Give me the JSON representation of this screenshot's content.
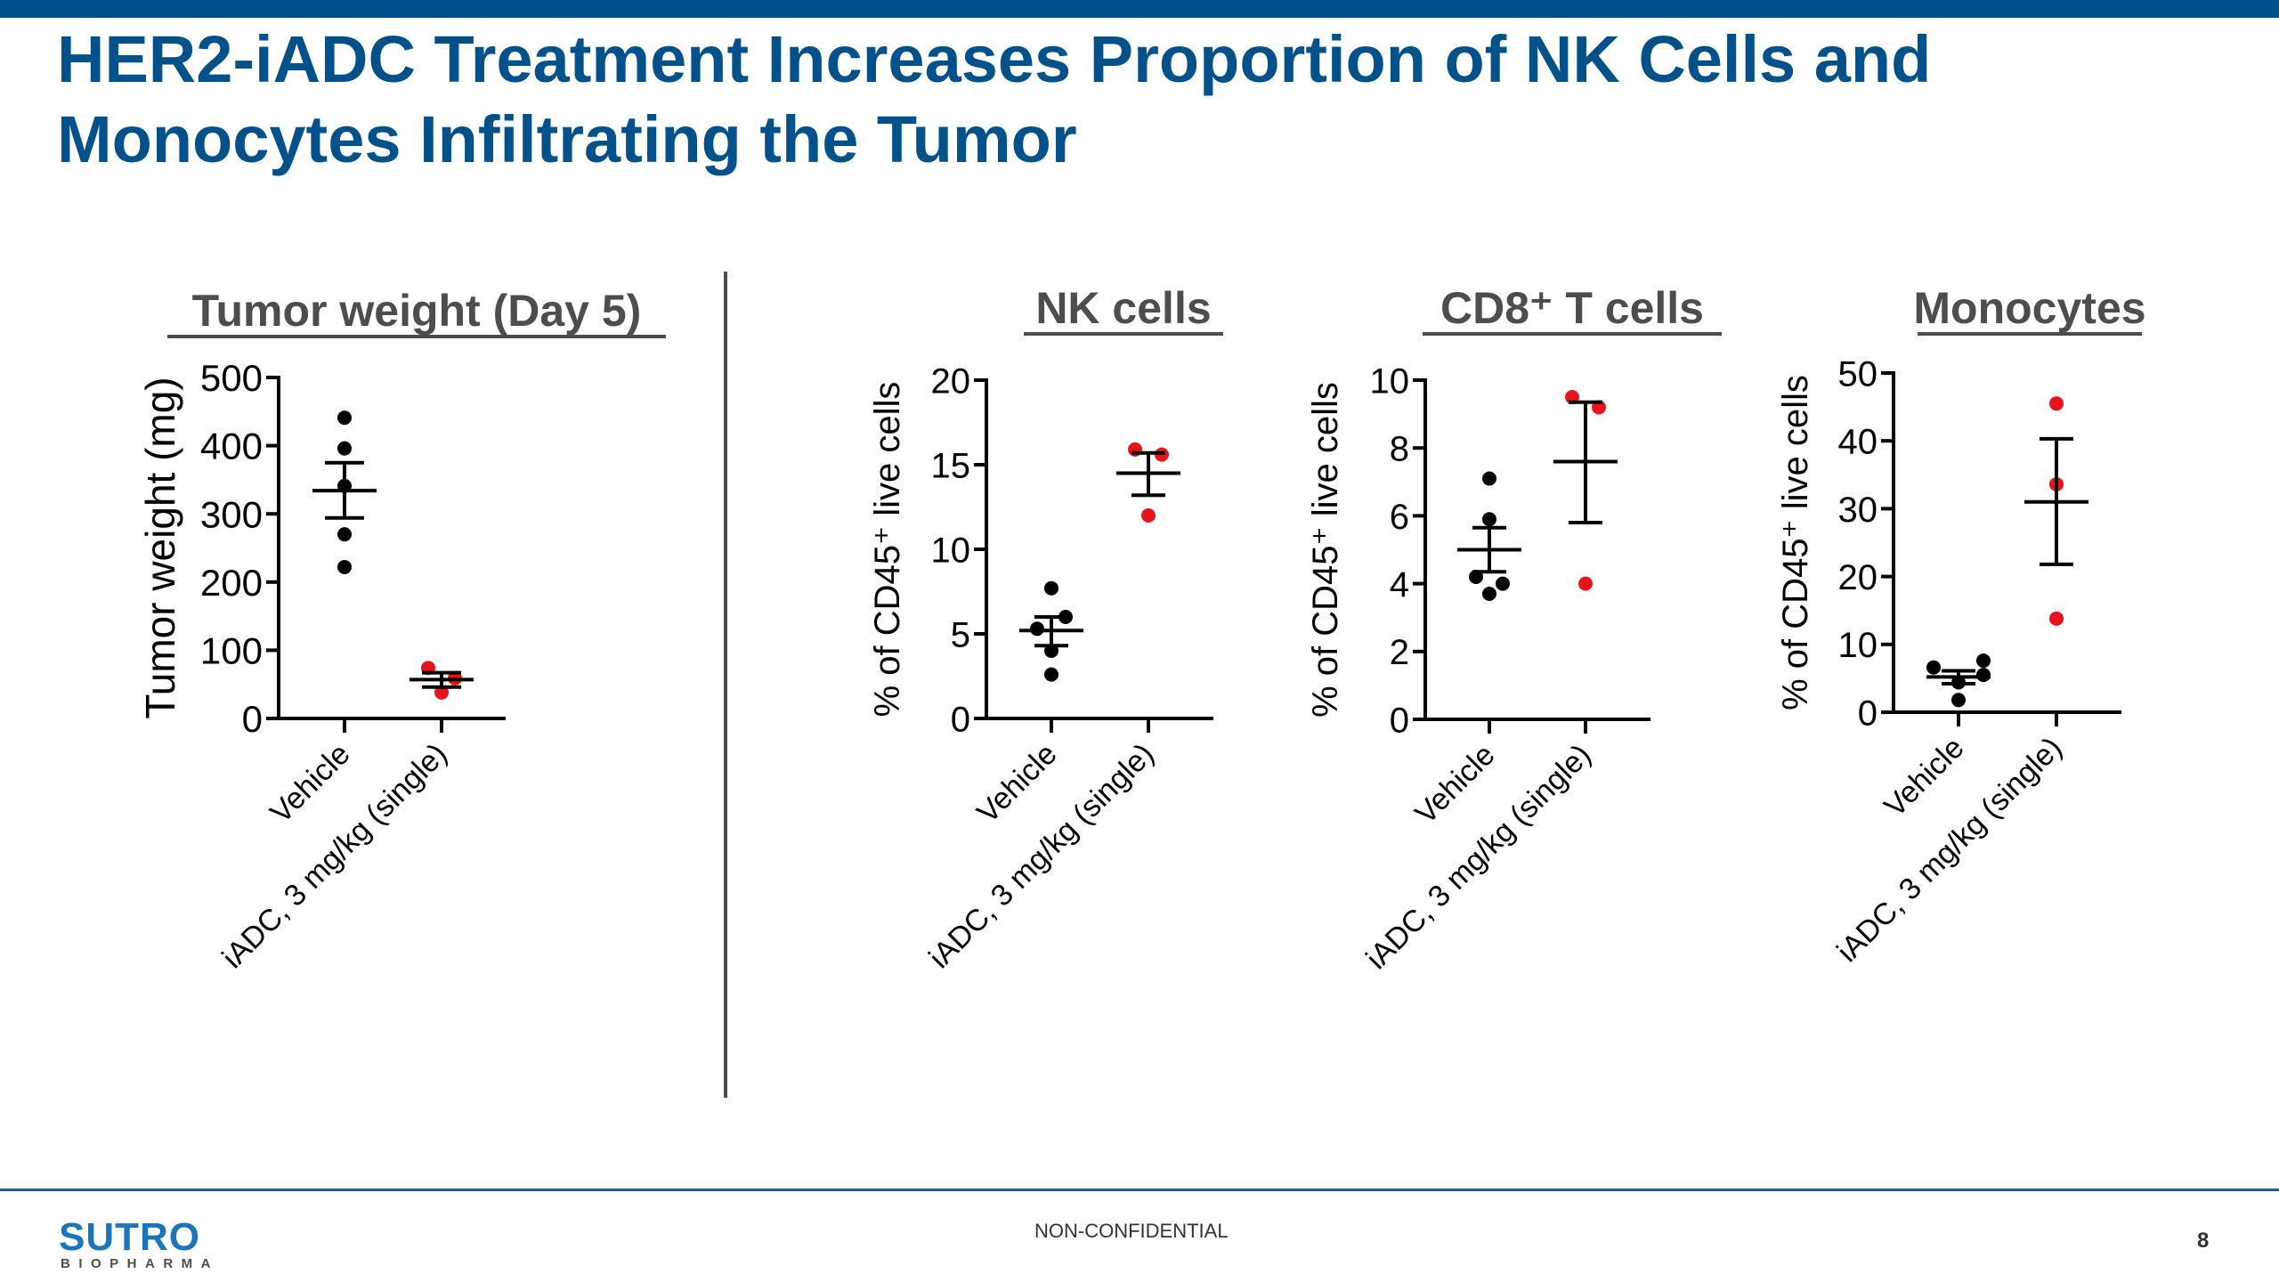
{
  "header": {
    "title_line1": "HER2-iADC Treatment Increases Proportion of NK Cells and",
    "title_line2": "Monocytes Infiltrating the Tumor"
  },
  "footer": {
    "logo_main": "SUTRO",
    "logo_sub": "BIOPHARMA",
    "classification": "NON-CONFIDENTIAL",
    "page_number": "8"
  },
  "colors": {
    "brand_blue": "#02518a",
    "vehicle_point": "#000000",
    "iadc_point": "#e8141b",
    "panel_title": "#4d4d4f"
  },
  "chart_data": [
    {
      "type": "scatter",
      "title": "Tumor weight (Day 5)",
      "xlabel": "",
      "ylabel": "Tumor weight (mg)",
      "ylim": [
        0,
        500
      ],
      "yticks": [
        0,
        100,
        200,
        300,
        400,
        500
      ],
      "categories": [
        "Vehicle",
        "iADC, 3 mg/kg (single)"
      ],
      "series": [
        {
          "name": "Vehicle",
          "color": "#000000",
          "values": [
            441,
            396,
            341,
            270,
            222
          ],
          "mean": 334,
          "sem_upper": 375,
          "sem_lower": 294
        },
        {
          "name": "iADC, 3 mg/kg (single)",
          "color": "#e8141b",
          "values": [
            74,
            59,
            38
          ],
          "mean": 57,
          "sem_upper": 67,
          "sem_lower": 46
        }
      ]
    },
    {
      "type": "scatter",
      "title": "NK cells",
      "xlabel": "",
      "ylabel": "% of CD45⁺ live cells",
      "ylim": [
        0,
        20
      ],
      "yticks": [
        0,
        5,
        10,
        15,
        20
      ],
      "categories": [
        "Vehicle",
        "iADC, 3 mg/kg (single)"
      ],
      "series": [
        {
          "name": "Vehicle",
          "color": "#000000",
          "values": [
            7.7,
            6.0,
            5.3,
            4.0,
            2.6
          ],
          "mean": 5.2,
          "sem_upper": 6.0,
          "sem_lower": 4.3
        },
        {
          "name": "iADC, 3 mg/kg (single)",
          "color": "#e8141b",
          "values": [
            15.9,
            15.6,
            12.0
          ],
          "mean": 14.5,
          "sem_upper": 15.7,
          "sem_lower": 13.2
        }
      ]
    },
    {
      "type": "scatter",
      "title": "CD8⁺ T cells",
      "xlabel": "",
      "ylabel": "% of CD45⁺ live cells",
      "ylim": [
        0,
        10
      ],
      "yticks": [
        0,
        2,
        4,
        6,
        8,
        10
      ],
      "categories": [
        "Vehicle",
        "iADC, 3 mg/kg (single)"
      ],
      "series": [
        {
          "name": "Vehicle",
          "color": "#000000",
          "values": [
            7.1,
            5.9,
            4.2,
            4.0,
            3.7
          ],
          "mean": 5.0,
          "sem_upper": 5.65,
          "sem_lower": 4.35
        },
        {
          "name": "iADC, 3 mg/kg (single)",
          "color": "#e8141b",
          "values": [
            9.5,
            9.2,
            4.0
          ],
          "mean": 7.6,
          "sem_upper": 9.35,
          "sem_lower": 5.8
        }
      ]
    },
    {
      "type": "scatter",
      "title": "Monocytes",
      "xlabel": "",
      "ylabel": "% of CD45⁺ live cells",
      "ylim": [
        0,
        50
      ],
      "yticks": [
        0,
        10,
        20,
        30,
        40,
        50
      ],
      "categories": [
        "Vehicle",
        "iADC, 3 mg/kg (single)"
      ],
      "series": [
        {
          "name": "Vehicle",
          "color": "#000000",
          "values": [
            7.6,
            6.6,
            5.5,
            4.4,
            1.8
          ],
          "mean": 5.2,
          "sem_upper": 6.1,
          "sem_lower": 4.2
        },
        {
          "name": "iADC, 3 mg/kg (single)",
          "color": "#e8141b",
          "values": [
            45.5,
            33.6,
            13.8
          ],
          "mean": 31.0,
          "sem_upper": 40.3,
          "sem_lower": 21.8
        }
      ]
    }
  ]
}
